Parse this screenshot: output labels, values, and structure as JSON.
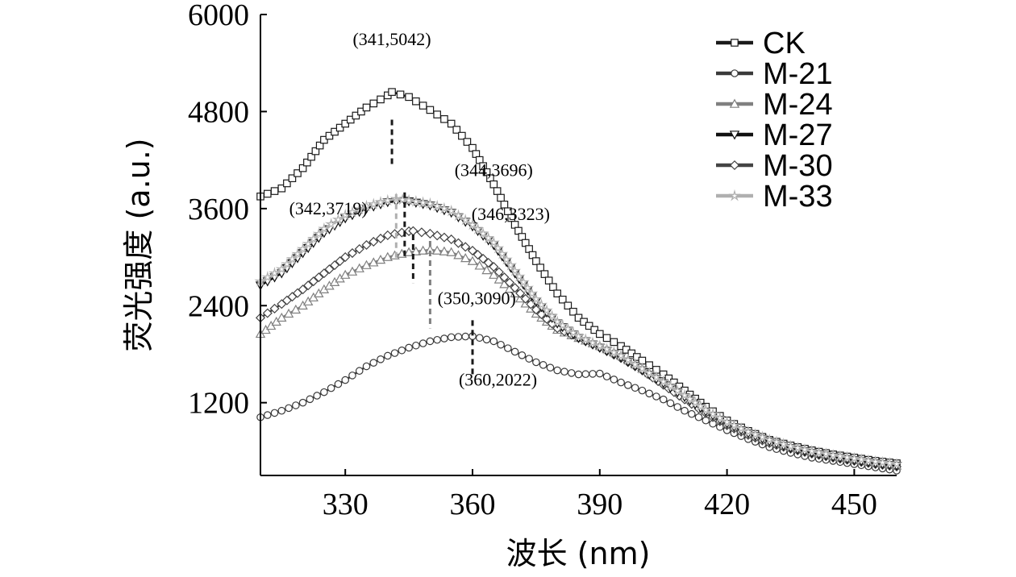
{
  "chart_data": {
    "type": "line",
    "title": "",
    "xlabel": "波长 (nm)",
    "ylabel": "荧光强度 (a.u.)",
    "xlim": [
      310,
      460
    ],
    "ylim": [
      300,
      6000
    ],
    "xticks": [
      330,
      360,
      390,
      420,
      450
    ],
    "yticks": [
      1200,
      2400,
      3600,
      4800,
      6000
    ],
    "grid": false,
    "legend_position": "top-right",
    "series": [
      {
        "name": "CK",
        "color": "#1a1a1a",
        "marker": "square",
        "x": [
          310,
          315,
          320,
          325,
          330,
          335,
          340,
          341,
          345,
          350,
          355,
          360,
          365,
          370,
          375,
          380,
          385,
          390,
          395,
          400,
          405,
          410,
          415,
          420,
          425,
          430,
          435,
          440,
          445,
          450,
          455,
          460
        ],
        "y": [
          3750,
          3850,
          4100,
          4450,
          4650,
          4850,
          5000,
          5042,
          4980,
          4820,
          4650,
          4350,
          3900,
          3400,
          2950,
          2550,
          2250,
          2050,
          1900,
          1720,
          1550,
          1350,
          1150,
          980,
          850,
          740,
          670,
          610,
          560,
          520,
          480,
          450
        ]
      },
      {
        "name": "M-21",
        "color": "#3a3a3a",
        "marker": "circle",
        "x": [
          310,
          315,
          320,
          325,
          330,
          335,
          340,
          345,
          350,
          355,
          360,
          365,
          370,
          375,
          380,
          385,
          390,
          395,
          400,
          405,
          410,
          415,
          420,
          425,
          430,
          435,
          440,
          445,
          450,
          455,
          460
        ],
        "y": [
          1020,
          1100,
          1200,
          1330,
          1480,
          1650,
          1780,
          1880,
          1960,
          2010,
          2022,
          1960,
          1830,
          1700,
          1600,
          1550,
          1560,
          1450,
          1350,
          1240,
          1100,
          980,
          860,
          750,
          650,
          580,
          520,
          480,
          440,
          400,
          360
        ]
      },
      {
        "name": "M-24",
        "color": "#808080",
        "marker": "triangle-up",
        "x": [
          310,
          315,
          320,
          325,
          330,
          335,
          340,
          345,
          350,
          355,
          360,
          365,
          370,
          375,
          380,
          385,
          390,
          395,
          400,
          405,
          410,
          415,
          420,
          425,
          430,
          435,
          440,
          445,
          450,
          455,
          460
        ],
        "y": [
          2050,
          2250,
          2400,
          2600,
          2780,
          2900,
          3000,
          3060,
          3090,
          3060,
          2950,
          2780,
          2550,
          2300,
          2100,
          2000,
          1900,
          1780,
          1620,
          1460,
          1280,
          1100,
          950,
          830,
          730,
          650,
          590,
          540,
          500,
          460,
          420
        ]
      },
      {
        "name": "M-27",
        "color": "#111111",
        "marker": "triangle-down",
        "x": [
          310,
          315,
          320,
          325,
          330,
          335,
          340,
          344,
          345,
          350,
          355,
          360,
          365,
          370,
          375,
          380,
          385,
          390,
          395,
          400,
          405,
          410,
          415,
          420,
          425,
          430,
          435,
          440,
          445,
          450,
          455,
          460
        ],
        "y": [
          2650,
          2800,
          3050,
          3300,
          3480,
          3600,
          3680,
          3696,
          3690,
          3640,
          3550,
          3380,
          3150,
          2800,
          2450,
          2180,
          2000,
          1880,
          1760,
          1600,
          1440,
          1270,
          1090,
          940,
          820,
          720,
          640,
          580,
          530,
          490,
          450,
          420
        ]
      },
      {
        "name": "M-30",
        "color": "#444444",
        "marker": "diamond",
        "x": [
          310,
          315,
          320,
          325,
          330,
          335,
          340,
          345,
          346,
          350,
          355,
          360,
          365,
          370,
          375,
          380,
          385,
          390,
          395,
          400,
          405,
          410,
          415,
          420,
          425,
          430,
          435,
          440,
          445,
          450,
          455,
          460
        ],
        "y": [
          2250,
          2420,
          2600,
          2800,
          3000,
          3150,
          3270,
          3320,
          3323,
          3290,
          3220,
          3080,
          2880,
          2620,
          2350,
          2120,
          2000,
          1880,
          1750,
          1600,
          1420,
          1240,
          1070,
          920,
          800,
          700,
          630,
          570,
          520,
          480,
          440,
          410
        ]
      },
      {
        "name": "M-33",
        "color": "#b0b0b0",
        "marker": "star",
        "x": [
          310,
          315,
          320,
          325,
          330,
          335,
          340,
          342,
          345,
          350,
          355,
          360,
          365,
          370,
          375,
          380,
          385,
          390,
          395,
          400,
          405,
          410,
          415,
          420,
          425,
          430,
          435,
          440,
          445,
          450,
          455,
          460
        ],
        "y": [
          2700,
          2850,
          3100,
          3350,
          3520,
          3630,
          3700,
          3719,
          3700,
          3660,
          3570,
          3400,
          3180,
          2830,
          2480,
          2200,
          2020,
          1900,
          1780,
          1620,
          1460,
          1290,
          1110,
          960,
          840,
          740,
          660,
          600,
          550,
          510,
          470,
          440
        ]
      }
    ],
    "annotations": [
      {
        "label": "(341,5042)",
        "x": 341,
        "y": 5042,
        "color": "#1a1a1a"
      },
      {
        "label": "(344,3696)",
        "x": 344,
        "y": 3696,
        "color": "#1a1a1a"
      },
      {
        "label": "(342,3719)",
        "x": 342,
        "y": 3719,
        "color": "#b0b0b0"
      },
      {
        "label": "(346,3323)",
        "x": 346,
        "y": 3323,
        "color": "#1a1a1a"
      },
      {
        "label": "(350,3090)",
        "x": 350,
        "y": 3090,
        "color": "#808080"
      },
      {
        "label": "(360,2022)",
        "x": 360,
        "y": 2022,
        "color": "#1a1a1a"
      }
    ]
  }
}
